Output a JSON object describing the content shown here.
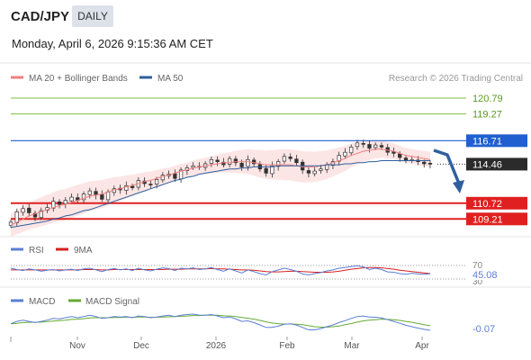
{
  "header": {
    "symbol": "CAD/JPY",
    "timeframe": "DAILY",
    "datetime": "Monday, April 6, 2026 9:15:36 AM CET"
  },
  "legend": {
    "bollinger": {
      "label": "MA 20 + Bollinger Bands",
      "color": "#f07f7f"
    },
    "ma50": {
      "label": "MA 50",
      "color": "#2f5f9e"
    }
  },
  "credit": "Research © 2026 Trading Central",
  "colors": {
    "resistance": "#1f5fd0",
    "target_up": "#7fbf3f",
    "support": "#e02020",
    "arrow": "#2f5f9e",
    "band_fill": "#fbdede"
  },
  "levels": [
    {
      "value": 120.79,
      "label": "120.79",
      "role": "resistance-2",
      "style": "green"
    },
    {
      "value": 119.27,
      "label": "119.27",
      "role": "resistance-1",
      "style": "green"
    },
    {
      "value": 116.71,
      "label": "116.71",
      "role": "pivot",
      "style": "blue"
    },
    {
      "value": 114.46,
      "label": "114.46",
      "role": "last-price",
      "style": "price"
    },
    {
      "value": 110.72,
      "label": "110.72",
      "role": "target-1",
      "style": "red"
    },
    {
      "value": 109.21,
      "label": "109.21",
      "role": "target-2",
      "style": "red"
    }
  ],
  "rsi": {
    "legend": "RSI",
    "signal_legend": "9MA",
    "levels": [
      "70",
      "30"
    ],
    "current": "45.08",
    "rsi_color": "#5b7fd6",
    "ma_color": "#d62020"
  },
  "macd": {
    "legend": "MACD",
    "signal_legend": "MACD Signal",
    "current": "-0.07",
    "macd_color": "#5b7fd6",
    "signal_color": "#66aa33"
  },
  "x_axis": {
    "labels": [
      "Nov",
      "Dec",
      "2026",
      "Feb",
      "Mar",
      "Apr"
    ]
  },
  "chart_data": {
    "type": "candlestick",
    "symbol": "CAD/JPY",
    "timeframe": "DAILY",
    "ylim": [
      108.2,
      122.0
    ],
    "price_series_close": [
      108.9,
      109.9,
      110.2,
      109.8,
      109.4,
      110.0,
      110.3,
      110.9,
      110.6,
      111.0,
      111.3,
      111.0,
      111.6,
      111.9,
      111.5,
      111.1,
      111.8,
      112.1,
      112.0,
      112.4,
      112.2,
      112.9,
      112.6,
      112.5,
      113.0,
      113.4,
      113.5,
      113.1,
      113.9,
      114.1,
      114.3,
      114.2,
      114.5,
      114.9,
      114.7,
      114.4,
      115.0,
      114.6,
      114.2,
      114.9,
      114.5,
      114.0,
      113.6,
      114.3,
      114.7,
      115.2,
      115.0,
      114.6,
      113.9,
      113.6,
      113.8,
      114.0,
      114.4,
      114.7,
      115.3,
      115.6,
      116.1,
      116.5,
      116.4,
      116.0,
      116.3,
      116.1,
      115.6,
      115.5,
      115.1,
      114.8,
      114.9,
      114.7,
      114.5,
      114.46
    ],
    "ma20": [
      108.6,
      108.9,
      109.2,
      109.5,
      109.7,
      109.9,
      110.1,
      110.3,
      110.5,
      110.6,
      110.8,
      111.0,
      111.2,
      111.4,
      111.5,
      111.6,
      111.8,
      112.0,
      112.1,
      112.3,
      112.4,
      112.6,
      112.8,
      112.9,
      113.1,
      113.3,
      113.4,
      113.6,
      113.8,
      113.9,
      114.1,
      114.2,
      114.3,
      114.4,
      114.5,
      114.6,
      114.6,
      114.7,
      114.7,
      114.7,
      114.6,
      114.5,
      114.4,
      114.4,
      114.4,
      114.4,
      114.4,
      114.3,
      114.2,
      114.2,
      114.2,
      114.3,
      114.4,
      114.6,
      114.8,
      115.0,
      115.3,
      115.5,
      115.7,
      115.8,
      115.9,
      115.9,
      115.8,
      115.7,
      115.5,
      115.3,
      115.2,
      115.1,
      115.0,
      114.9
    ],
    "ma50": [
      108.4,
      108.5,
      108.6,
      108.7,
      108.8,
      108.9,
      109.0,
      109.2,
      109.3,
      109.5,
      109.6,
      109.8,
      110.0,
      110.1,
      110.3,
      110.5,
      110.7,
      110.9,
      111.1,
      111.3,
      111.5,
      111.7,
      111.9,
      112.1,
      112.3,
      112.5,
      112.7,
      112.9,
      113.0,
      113.2,
      113.3,
      113.5,
      113.6,
      113.7,
      113.8,
      113.9,
      114.0,
      114.0,
      114.1,
      114.1,
      114.2,
      114.2,
      114.2,
      114.2,
      114.3,
      114.3,
      114.3,
      114.3,
      114.3,
      114.3,
      114.3,
      114.3,
      114.4,
      114.4,
      114.4,
      114.5,
      114.5,
      114.6,
      114.6,
      114.7,
      114.7,
      114.8,
      114.8,
      114.8,
      114.8,
      114.8,
      114.8,
      114.8,
      114.8,
      114.8
    ],
    "rsi_values": [
      62,
      58,
      55,
      60,
      57,
      53,
      56,
      58,
      54,
      57,
      59,
      55,
      60,
      62,
      57,
      52,
      58,
      61,
      57,
      60,
      55,
      62,
      57,
      54,
      59,
      63,
      61,
      55,
      62,
      60,
      63,
      58,
      60,
      64,
      58,
      53,
      60,
      54,
      48,
      57,
      52,
      46,
      42,
      52,
      57,
      62,
      58,
      53,
      45,
      42,
      46,
      49,
      54,
      57,
      62,
      64,
      67,
      69,
      66,
      58,
      62,
      58,
      51,
      50,
      46,
      44,
      47,
      45,
      44,
      45.08
    ],
    "rsi_ma_values": [
      57,
      57,
      57,
      57,
      57,
      57,
      57,
      57,
      57,
      57,
      57,
      57,
      58,
      58,
      58,
      57,
      57,
      58,
      58,
      58,
      58,
      58,
      58,
      58,
      58,
      58,
      59,
      59,
      59,
      60,
      60,
      60,
      60,
      61,
      60,
      60,
      59,
      58,
      57,
      57,
      56,
      54,
      52,
      51,
      51,
      52,
      53,
      53,
      52,
      51,
      50,
      50,
      50,
      51,
      53,
      56,
      59,
      61,
      63,
      64,
      64,
      63,
      61,
      59,
      56,
      54,
      52,
      50,
      48,
      46
    ],
    "macd_values": [
      0.2,
      0.3,
      0.35,
      0.3,
      0.25,
      0.3,
      0.35,
      0.42,
      0.4,
      0.45,
      0.5,
      0.45,
      0.5,
      0.55,
      0.5,
      0.42,
      0.45,
      0.5,
      0.48,
      0.5,
      0.45,
      0.52,
      0.5,
      0.45,
      0.48,
      0.52,
      0.55,
      0.5,
      0.55,
      0.58,
      0.6,
      0.56,
      0.55,
      0.58,
      0.52,
      0.45,
      0.48,
      0.4,
      0.3,
      0.32,
      0.25,
      0.15,
      0.05,
      0.05,
      0.1,
      0.18,
      0.2,
      0.15,
      0.05,
      -0.05,
      -0.05,
      0.0,
      0.08,
      0.15,
      0.25,
      0.33,
      0.42,
      0.5,
      0.52,
      0.48,
      0.47,
      0.44,
      0.37,
      0.3,
      0.22,
      0.14,
      0.08,
      0.02,
      -0.03,
      -0.07
    ],
    "macd_signal_values": [
      0.2,
      0.22,
      0.25,
      0.26,
      0.26,
      0.27,
      0.29,
      0.31,
      0.33,
      0.35,
      0.38,
      0.39,
      0.41,
      0.44,
      0.45,
      0.45,
      0.45,
      0.46,
      0.46,
      0.47,
      0.47,
      0.48,
      0.48,
      0.47,
      0.47,
      0.48,
      0.49,
      0.5,
      0.51,
      0.52,
      0.54,
      0.54,
      0.55,
      0.55,
      0.55,
      0.53,
      0.52,
      0.5,
      0.46,
      0.43,
      0.39,
      0.34,
      0.28,
      0.23,
      0.2,
      0.19,
      0.19,
      0.18,
      0.16,
      0.12,
      0.08,
      0.06,
      0.06,
      0.08,
      0.11,
      0.16,
      0.21,
      0.27,
      0.32,
      0.35,
      0.37,
      0.39,
      0.38,
      0.37,
      0.34,
      0.3,
      0.26,
      0.21,
      0.16,
      0.12
    ]
  }
}
